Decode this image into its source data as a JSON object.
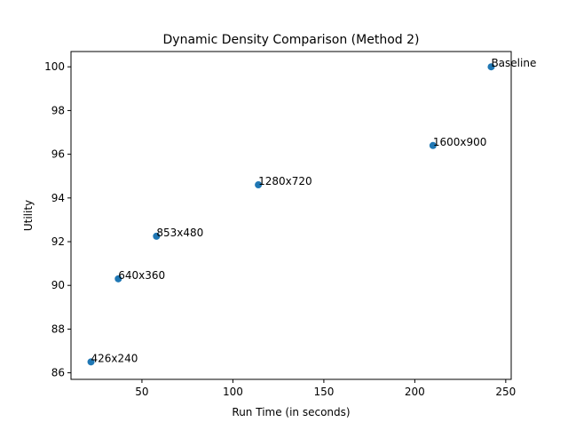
{
  "chart_data": {
    "type": "scatter",
    "title": "Dynamic Density Comparison (Method 2)",
    "xlabel": "Run Time (in seconds)",
    "ylabel": "Utility",
    "xlim": [
      11,
      253
    ],
    "ylim": [
      85.7,
      100.7
    ],
    "x_ticks": [
      50,
      100,
      150,
      200,
      250
    ],
    "y_ticks": [
      86,
      88,
      90,
      92,
      94,
      96,
      98,
      100
    ],
    "grid": false,
    "legend": "none",
    "marker_color": "#1f77b4",
    "points": [
      {
        "label": "426x240",
        "x": 22,
        "y": 86.5
      },
      {
        "label": "640x360",
        "x": 37,
        "y": 90.3
      },
      {
        "label": "853x480",
        "x": 58,
        "y": 92.25
      },
      {
        "label": "1280x720",
        "x": 114,
        "y": 94.6
      },
      {
        "label": "1600x900",
        "x": 210,
        "y": 96.4
      },
      {
        "label": "Baseline",
        "x": 242,
        "y": 100.0
      }
    ]
  }
}
